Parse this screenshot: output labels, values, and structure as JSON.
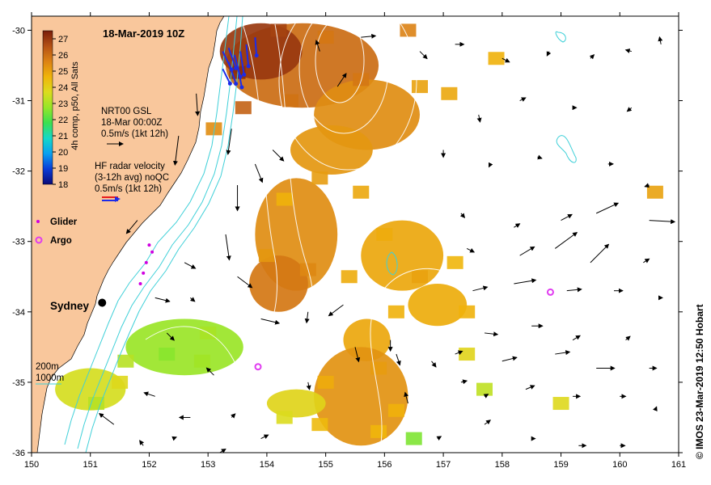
{
  "map": {
    "title": "18-Mar-2019 10Z",
    "credit": "©  IMOS 23-Mar-2019 12:50 Hobart",
    "lon_range": [
      150,
      161
    ],
    "lat_range": [
      -36,
      -29.8
    ],
    "x_ticks": [
      "150",
      "151",
      "152",
      "153",
      "154",
      "155",
      "156",
      "157",
      "158",
      "159",
      "160",
      "161"
    ],
    "y_ticks": [
      "-30",
      "-31",
      "-32",
      "-33",
      "-34",
      "-35",
      "-36"
    ],
    "colors": {
      "land": "#f9c79c",
      "isobath": "#3fd0d8",
      "ssh_contour": "#ffffff",
      "arrow": "#000000",
      "radar_red": "#e81c1c",
      "radar_blue": "#1c2ce8",
      "glider": "#d000e0",
      "argo": "#e03cf0"
    }
  },
  "colorbar": {
    "label": "4h comp, p50, All Sats",
    "ticks": [
      "27",
      "26",
      "25",
      "24",
      "23",
      "22",
      "21",
      "20",
      "19",
      "18"
    ],
    "range": [
      18,
      27.5
    ],
    "stops": [
      "#0a0a78",
      "#0a3cd8",
      "#0aa0f0",
      "#14d8c8",
      "#3ce050",
      "#96e628",
      "#dcdc1e",
      "#f0b40a",
      "#dc8214",
      "#b45014",
      "#7a1e0a"
    ]
  },
  "legend": {
    "gsl_line1": "NRT00 GSL",
    "gsl_line2": "18-Mar 00:00Z",
    "gsl_line3": "0.5m/s (1kt 12h)",
    "radar_line1": "HF radar velocity",
    "radar_line2": "(3-12h avg) noQC",
    "radar_line3": "0.5m/s (1kt 12h)",
    "glider": "Glider",
    "argo": "Argo",
    "isobath_200": "200m",
    "isobath_1000": "1000m"
  },
  "labels": {
    "city": "Sydney"
  },
  "glider_positions": [
    [
      152.0,
      -33.05
    ],
    [
      152.05,
      -33.15
    ],
    [
      151.95,
      -33.3
    ],
    [
      151.9,
      -33.45
    ],
    [
      151.85,
      -33.6
    ]
  ],
  "argo_floats": [
    [
      153.85,
      -34.78
    ],
    [
      158.82,
      -33.72
    ]
  ],
  "sydney": [
    151.2,
    -33.87
  ],
  "sst_patches": [
    {
      "lon": 154.6,
      "lat": -30.5,
      "rx": 1.3,
      "ry": 0.6,
      "t": 26.0
    },
    {
      "lon": 153.9,
      "lat": -30.3,
      "rx": 0.7,
      "ry": 0.4,
      "t": 27.0
    },
    {
      "lon": 155.7,
      "lat": -31.2,
      "rx": 0.9,
      "ry": 0.5,
      "t": 25.4
    },
    {
      "lon": 155.1,
      "lat": -31.7,
      "rx": 0.7,
      "ry": 0.35,
      "t": 25.2
    },
    {
      "lon": 154.5,
      "lat": -32.9,
      "rx": 0.7,
      "ry": 0.8,
      "t": 25.4
    },
    {
      "lon": 154.2,
      "lat": -33.6,
      "rx": 0.5,
      "ry": 0.4,
      "t": 25.8
    },
    {
      "lon": 156.3,
      "lat": -33.2,
      "rx": 0.7,
      "ry": 0.5,
      "t": 24.9
    },
    {
      "lon": 156.9,
      "lat": -33.9,
      "rx": 0.5,
      "ry": 0.3,
      "t": 24.8
    },
    {
      "lon": 155.7,
      "lat": -34.4,
      "rx": 0.4,
      "ry": 0.3,
      "t": 24.9
    },
    {
      "lon": 155.6,
      "lat": -35.2,
      "rx": 0.8,
      "ry": 0.7,
      "t": 25.3
    },
    {
      "lon": 152.6,
      "lat": -34.5,
      "rx": 1.0,
      "ry": 0.4,
      "t": 22.8
    },
    {
      "lon": 151.0,
      "lat": -35.1,
      "rx": 0.6,
      "ry": 0.3,
      "t": 23.6
    },
    {
      "lon": 154.5,
      "lat": -35.3,
      "rx": 0.5,
      "ry": 0.2,
      "t": 23.9
    }
  ],
  "sst_points": [
    {
      "lon": 153.5,
      "lat": -30.6,
      "t": 27.2
    },
    {
      "lon": 154.2,
      "lat": -30.0,
      "t": 26.8
    },
    {
      "lon": 155.0,
      "lat": -30.1,
      "t": 25.8
    },
    {
      "lon": 156.4,
      "lat": -30.0,
      "t": 25.6
    },
    {
      "lon": 155.6,
      "lat": -30.7,
      "t": 25.8
    },
    {
      "lon": 153.6,
      "lat": -31.1,
      "t": 26.2
    },
    {
      "lon": 154.4,
      "lat": -31.0,
      "t": 25.9
    },
    {
      "lon": 156.6,
      "lat": -30.8,
      "t": 25.0
    },
    {
      "lon": 157.1,
      "lat": -30.9,
      "t": 24.9
    },
    {
      "lon": 154.9,
      "lat": -32.1,
      "t": 25.1
    },
    {
      "lon": 155.6,
      "lat": -32.3,
      "t": 24.9
    },
    {
      "lon": 154.3,
      "lat": -32.4,
      "t": 24.7
    },
    {
      "lon": 154.7,
      "lat": -33.4,
      "t": 25.5
    },
    {
      "lon": 154.0,
      "lat": -33.2,
      "t": 25.2
    },
    {
      "lon": 155.4,
      "lat": -33.5,
      "t": 24.8
    },
    {
      "lon": 156.0,
      "lat": -32.9,
      "t": 24.8
    },
    {
      "lon": 156.6,
      "lat": -33.5,
      "t": 25.0
    },
    {
      "lon": 157.2,
      "lat": -33.3,
      "t": 24.6
    },
    {
      "lon": 157.4,
      "lat": -34.0,
      "t": 24.7
    },
    {
      "lon": 156.2,
      "lat": -34.0,
      "t": 24.7
    },
    {
      "lon": 155.9,
      "lat": -34.8,
      "t": 25.1
    },
    {
      "lon": 155.0,
      "lat": -35.0,
      "t": 24.8
    },
    {
      "lon": 154.9,
      "lat": -35.6,
      "t": 24.5
    },
    {
      "lon": 155.9,
      "lat": -35.7,
      "t": 24.6
    },
    {
      "lon": 156.2,
      "lat": -35.4,
      "t": 24.7
    },
    {
      "lon": 153.0,
      "lat": -34.3,
      "t": 23.0
    },
    {
      "lon": 152.3,
      "lat": -34.6,
      "t": 22.6
    },
    {
      "lon": 151.6,
      "lat": -34.7,
      "t": 23.2
    },
    {
      "lon": 152.9,
      "lat": -34.7,
      "t": 22.9
    },
    {
      "lon": 151.1,
      "lat": -35.3,
      "t": 23.2
    },
    {
      "lon": 151.5,
      "lat": -35.0,
      "t": 23.8
    },
    {
      "lon": 154.3,
      "lat": -35.5,
      "t": 23.7
    },
    {
      "lon": 156.5,
      "lat": -35.8,
      "t": 22.5
    },
    {
      "lon": 153.1,
      "lat": -31.4,
      "t": 25.4
    },
    {
      "lon": 160.6,
      "lat": -32.3,
      "t": 25.0
    },
    {
      "lon": 157.9,
      "lat": -30.4,
      "t": 24.7
    },
    {
      "lon": 157.4,
      "lat": -34.6,
      "t": 23.9
    },
    {
      "lon": 159.0,
      "lat": -35.3,
      "t": 23.8
    },
    {
      "lon": 157.7,
      "lat": -35.1,
      "t": 23.3
    }
  ],
  "radar_vectors": [
    [
      153.25,
      -30.3,
      0.12,
      -0.25
    ],
    [
      153.35,
      -30.25,
      0.1,
      -0.28
    ],
    [
      153.45,
      -30.35,
      0.08,
      -0.3
    ],
    [
      153.55,
      -30.3,
      0.05,
      -0.32
    ],
    [
      153.35,
      -30.45,
      0.1,
      -0.3
    ],
    [
      153.5,
      -30.5,
      0.06,
      -0.3
    ],
    [
      153.65,
      -30.2,
      0.03,
      -0.3
    ],
    [
      153.8,
      -30.1,
      0.02,
      -0.25
    ],
    [
      153.25,
      -30.55,
      0.1,
      -0.2
    ]
  ],
  "current_vectors": [
    [
      151.8,
      -32.7,
      -0.15,
      -0.18
    ],
    [
      152.5,
      -31.5,
      -0.05,
      -0.4
    ],
    [
      152.8,
      -30.9,
      0.02,
      -0.3
    ],
    [
      153.4,
      -31.4,
      -0.05,
      -0.35
    ],
    [
      153.5,
      -32.2,
      0.0,
      -0.35
    ],
    [
      153.3,
      -32.9,
      0.05,
      -0.35
    ],
    [
      153.8,
      -31.9,
      0.1,
      -0.25
    ],
    [
      154.1,
      -31.7,
      0.15,
      -0.15
    ],
    [
      155.2,
      -30.8,
      0.12,
      0.18
    ],
    [
      154.9,
      -30.3,
      -0.05,
      0.15
    ],
    [
      155.6,
      -30.1,
      0.2,
      0.02
    ],
    [
      156.6,
      -30.3,
      0.1,
      -0.1
    ],
    [
      157.2,
      -30.2,
      0.12,
      0.0
    ],
    [
      158.0,
      -30.4,
      0.1,
      -0.05
    ],
    [
      158.8,
      -30.3,
      -0.03,
      -0.06
    ],
    [
      159.5,
      -30.4,
      0.05,
      0.05
    ],
    [
      160.2,
      -30.3,
      -0.08,
      0.02
    ],
    [
      160.7,
      -30.2,
      -0.02,
      0.1
    ],
    [
      157.6,
      -31.2,
      0.02,
      -0.1
    ],
    [
      158.3,
      -31.0,
      0.08,
      0.04
    ],
    [
      159.2,
      -31.1,
      0.05,
      0.0
    ],
    [
      160.2,
      -31.1,
      -0.06,
      -0.05
    ],
    [
      157.0,
      -31.7,
      0.0,
      -0.1
    ],
    [
      157.8,
      -31.9,
      -0.02,
      -0.04
    ],
    [
      158.6,
      -31.8,
      0.06,
      -0.02
    ],
    [
      159.8,
      -31.9,
      0.07,
      0.0
    ],
    [
      160.5,
      -32.2,
      -0.06,
      -0.02
    ],
    [
      157.3,
      -32.6,
      0.05,
      -0.06
    ],
    [
      158.2,
      -32.8,
      0.08,
      0.05
    ],
    [
      159.0,
      -32.7,
      0.15,
      0.08
    ],
    [
      159.6,
      -32.6,
      0.3,
      0.14
    ],
    [
      160.5,
      -32.7,
      0.35,
      -0.02
    ],
    [
      157.4,
      -33.1,
      0.1,
      -0.05
    ],
    [
      158.3,
      -33.2,
      0.2,
      0.12
    ],
    [
      158.9,
      -33.1,
      0.3,
      0.22
    ],
    [
      159.5,
      -33.3,
      0.25,
      0.25
    ],
    [
      160.4,
      -33.3,
      0.08,
      0.05
    ],
    [
      157.5,
      -33.7,
      0.2,
      0.05
    ],
    [
      158.2,
      -33.6,
      0.3,
      0.05
    ],
    [
      159.1,
      -33.7,
      0.2,
      0.02
    ],
    [
      159.9,
      -33.7,
      0.12,
      0.0
    ],
    [
      160.7,
      -33.8,
      0.02,
      0.0
    ],
    [
      157.7,
      -34.3,
      0.18,
      -0.02
    ],
    [
      158.5,
      -34.2,
      0.15,
      0.0
    ],
    [
      159.2,
      -34.4,
      0.1,
      0.06
    ],
    [
      160.1,
      -34.4,
      0.06,
      0.05
    ],
    [
      157.2,
      -34.6,
      0.1,
      0.04
    ],
    [
      158.0,
      -34.7,
      0.2,
      0.05
    ],
    [
      158.9,
      -34.6,
      0.2,
      0.03
    ],
    [
      159.6,
      -34.8,
      0.25,
      0.0
    ],
    [
      160.5,
      -34.8,
      0.1,
      0.0
    ],
    [
      157.7,
      -35.2,
      0.05,
      0.03
    ],
    [
      158.4,
      -35.1,
      0.12,
      0.05
    ],
    [
      159.2,
      -35.2,
      0.1,
      0.0
    ],
    [
      160.0,
      -35.2,
      0.08,
      0.0
    ],
    [
      160.6,
      -35.4,
      0.02,
      0.05
    ],
    [
      156.9,
      -35.8,
      0.05,
      0.03
    ],
    [
      157.7,
      -35.6,
      0.08,
      0.06
    ],
    [
      158.5,
      -35.8,
      0.05,
      0.0
    ],
    [
      159.3,
      -35.9,
      0.1,
      0.0
    ],
    [
      160.0,
      -35.9,
      0.07,
      0.0
    ],
    [
      154.7,
      -34.0,
      -0.02,
      -0.15
    ],
    [
      155.3,
      -33.9,
      -0.2,
      -0.15
    ],
    [
      155.5,
      -34.5,
      0.05,
      -0.2
    ],
    [
      156.2,
      -34.6,
      0.05,
      -0.15
    ],
    [
      156.8,
      -34.7,
      0.06,
      -0.08
    ],
    [
      153.5,
      -33.5,
      0.2,
      -0.15
    ],
    [
      152.6,
      -33.3,
      0.15,
      -0.08
    ],
    [
      152.1,
      -33.8,
      0.2,
      -0.05
    ],
    [
      152.7,
      -33.8,
      0.06,
      -0.05
    ],
    [
      152.3,
      -34.3,
      0.1,
      -0.1
    ],
    [
      153.9,
      -34.1,
      0.25,
      -0.06
    ],
    [
      153.1,
      -34.9,
      -0.1,
      0.1
    ],
    [
      152.1,
      -35.2,
      -0.15,
      0.05
    ],
    [
      151.4,
      -35.6,
      -0.2,
      0.15
    ],
    [
      151.9,
      -35.9,
      -0.05,
      0.07
    ],
    [
      152.7,
      -35.5,
      -0.15,
      0.0
    ],
    [
      153.4,
      -35.5,
      0.05,
      0.05
    ],
    [
      153.9,
      -35.8,
      0.1,
      0.05
    ],
    [
      154.7,
      -35.0,
      0.02,
      -0.1
    ],
    [
      156.4,
      -35.3,
      -0.04,
      0.15
    ],
    [
      153.2,
      -36.0,
      0.08,
      0.05
    ],
    [
      152.4,
      -35.8,
      0.05,
      0.02
    ],
    [
      157.3,
      -35.0,
      0.08,
      0.02
    ],
    [
      156.1,
      -34.4,
      0.0,
      -0.15
    ]
  ]
}
